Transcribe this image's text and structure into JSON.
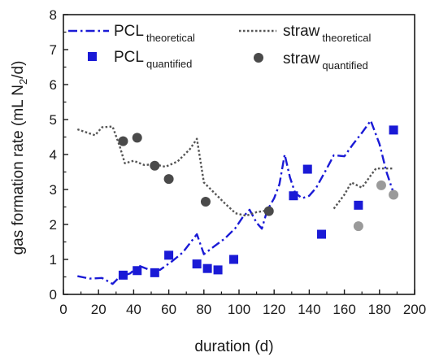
{
  "chart_data": {
    "type": "scatter",
    "xlabel": "duration (d)",
    "ylabel": {
      "main": "gas formation rate (mL N",
      "sub": "2",
      "tail": "/d)"
    },
    "xlim": [
      0,
      200
    ],
    "ylim": [
      0,
      8
    ],
    "xticks": [
      0,
      20,
      40,
      60,
      80,
      100,
      120,
      140,
      160,
      180,
      200
    ],
    "yticks": [
      0,
      1,
      2,
      3,
      4,
      5,
      6,
      7,
      8
    ],
    "grid": false,
    "legend_position": "top",
    "series": [
      {
        "name": "PCL",
        "name_sub": "theoretical",
        "kind": "line",
        "style": "dash-dot",
        "color": "#1a1ad6",
        "points": [
          [
            8,
            0.52
          ],
          [
            15,
            0.45
          ],
          [
            22,
            0.47
          ],
          [
            28,
            0.3
          ],
          [
            32,
            0.5
          ],
          [
            38,
            0.6
          ],
          [
            43,
            0.82
          ],
          [
            48,
            0.72
          ],
          [
            55,
            0.7
          ],
          [
            62,
            0.95
          ],
          [
            68,
            1.2
          ],
          [
            76,
            1.72
          ],
          [
            80,
            1.15
          ],
          [
            86,
            1.38
          ],
          [
            92,
            1.6
          ],
          [
            98,
            1.9
          ],
          [
            102,
            2.2
          ],
          [
            106,
            2.42
          ],
          [
            110,
            2.05
          ],
          [
            113,
            1.88
          ],
          [
            116,
            2.4
          ],
          [
            120,
            2.75
          ],
          [
            123,
            3.15
          ],
          [
            126,
            4.0
          ],
          [
            129,
            3.35
          ],
          [
            132,
            2.9
          ],
          [
            136,
            2.75
          ],
          [
            140,
            2.82
          ],
          [
            144,
            3.05
          ],
          [
            150,
            3.6
          ],
          [
            154,
            3.98
          ],
          [
            160,
            3.95
          ],
          [
            165,
            4.3
          ],
          [
            170,
            4.62
          ],
          [
            175,
            4.97
          ],
          [
            180,
            4.3
          ],
          [
            184,
            3.5
          ],
          [
            188,
            2.9
          ]
        ]
      },
      {
        "name": "straw",
        "name_sub": "theoretical",
        "kind": "line",
        "style": "dotted",
        "color": "#555555",
        "segments": [
          [
            [
              8,
              4.72
            ],
            [
              12,
              4.65
            ],
            [
              18,
              4.55
            ],
            [
              22,
              4.78
            ],
            [
              28,
              4.8
            ],
            [
              32,
              4.25
            ],
            [
              35,
              3.75
            ],
            [
              40,
              3.82
            ],
            [
              46,
              3.7
            ],
            [
              52,
              3.72
            ],
            [
              58,
              3.65
            ],
            [
              65,
              3.8
            ],
            [
              72,
              4.15
            ],
            [
              76,
              4.45
            ],
            [
              80,
              3.2
            ],
            [
              86,
              2.9
            ],
            [
              92,
              2.6
            ],
            [
              98,
              2.32
            ],
            [
              104,
              2.25
            ],
            [
              110,
              2.35
            ],
            [
              116,
              2.4
            ]
          ],
          [
            [
              154,
              2.45
            ],
            [
              160,
              2.85
            ],
            [
              164,
              3.2
            ],
            [
              170,
              3.05
            ],
            [
              175,
              3.4
            ],
            [
              178,
              3.6
            ],
            [
              188,
              3.6
            ]
          ]
        ]
      },
      {
        "name": "PCL",
        "name_sub": "quantified",
        "kind": "points",
        "marker": "square",
        "color": "#1a1ad6",
        "points": [
          [
            34,
            0.55
          ],
          [
            42,
            0.68
          ],
          [
            52,
            0.62
          ],
          [
            60,
            1.12
          ],
          [
            76,
            0.87
          ],
          [
            82,
            0.74
          ],
          [
            88,
            0.7
          ],
          [
            97,
            1.0
          ],
          [
            131,
            2.82
          ],
          [
            139,
            3.58
          ],
          [
            147,
            1.72
          ],
          [
            168,
            2.55
          ],
          [
            188,
            4.7
          ]
        ]
      },
      {
        "name": "straw",
        "name_sub": "quantified",
        "kind": "points",
        "marker": "circle",
        "colors": [
          "#4a4a4a",
          "#4a4a4a",
          "#4a4a4a",
          "#4a4a4a",
          "#4a4a4a",
          "#4a4a4a",
          "#9a9a9a",
          "#9a9a9a",
          "#9a9a9a"
        ],
        "points": [
          [
            34,
            4.38
          ],
          [
            42,
            4.48
          ],
          [
            52,
            3.68
          ],
          [
            60,
            3.3
          ],
          [
            81,
            2.65
          ],
          [
            117,
            2.38
          ],
          [
            168,
            1.95
          ],
          [
            181,
            3.12
          ],
          [
            188,
            2.85
          ]
        ]
      }
    ]
  }
}
